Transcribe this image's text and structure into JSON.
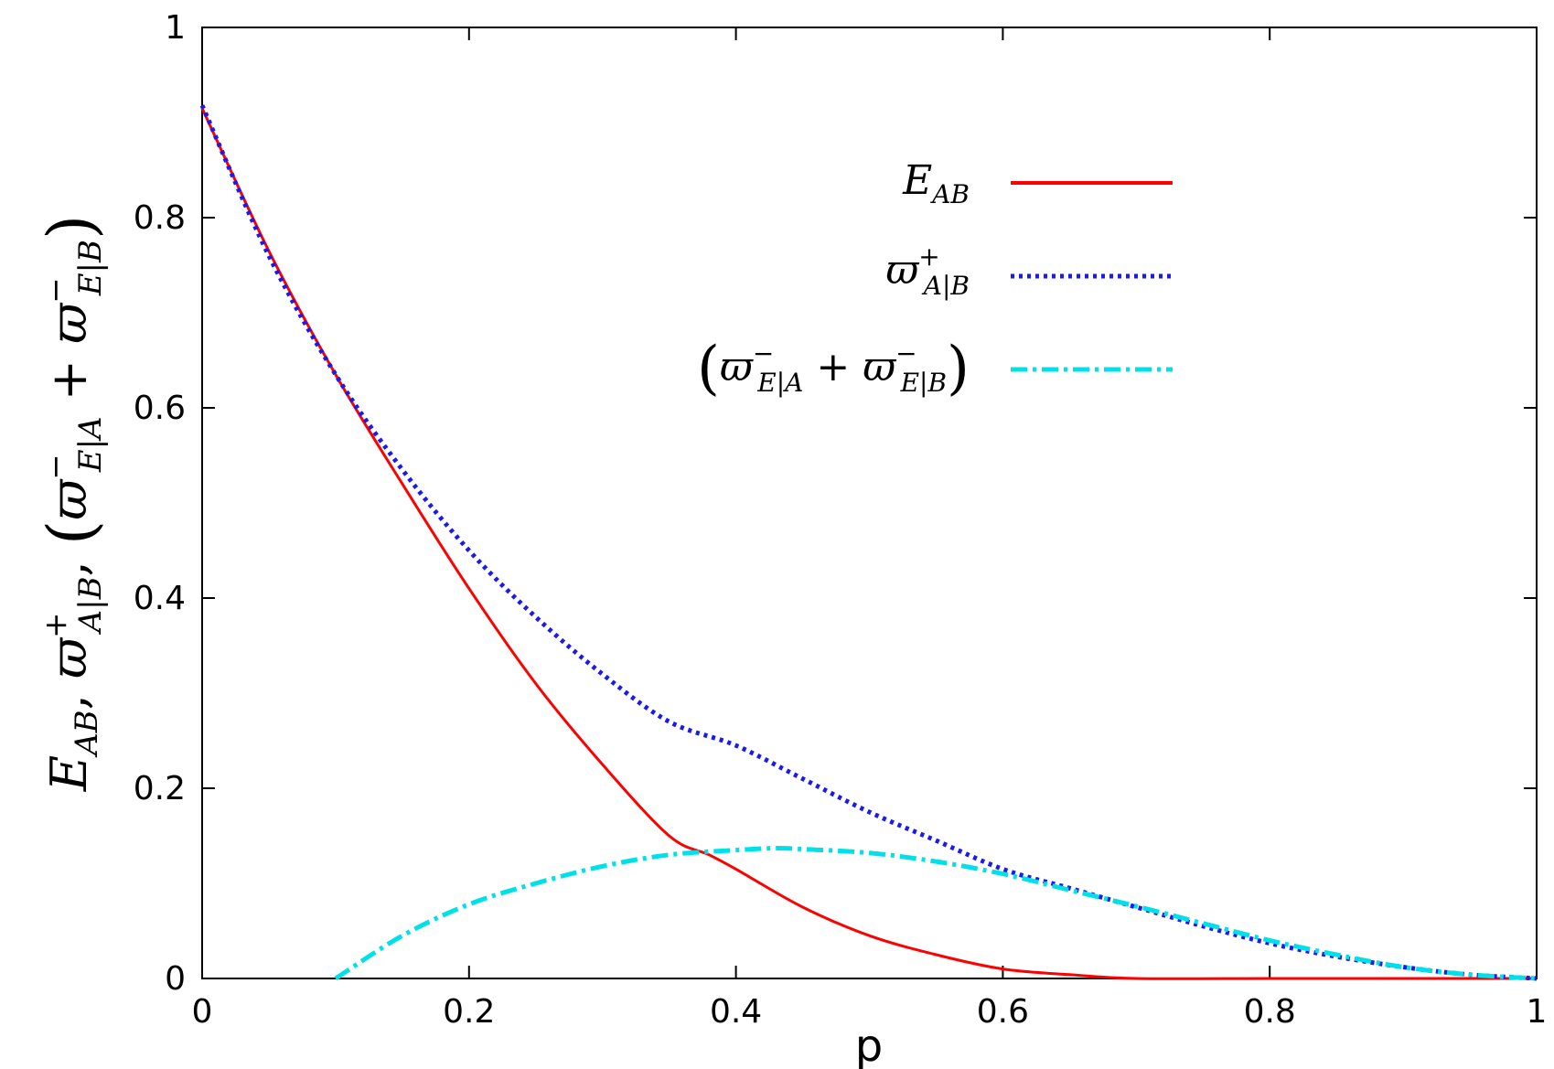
{
  "chart_data": {
    "type": "line",
    "xlabel": "p",
    "ylabel": {
      "main": "E",
      "sub_ab": "AB",
      "sep": ", ",
      "varpi": "ϖ",
      "sup_plus": "+",
      "sub_ab_cond": "A|B",
      "paren_open": "(",
      "paren_close": ")",
      "sup_minus": "−",
      "sub_ea": "E|A",
      "plus": " + ",
      "sub_eb": "E|B"
    },
    "xlim": [
      0,
      1
    ],
    "ylim": [
      0,
      1
    ],
    "xticks": [
      "0",
      "0.2",
      "0.4",
      "0.6",
      "0.8",
      "1"
    ],
    "yticks": [
      "0",
      "0.2",
      "0.4",
      "0.6",
      "0.8",
      "1"
    ],
    "grid": false,
    "legend_placement": "top-right",
    "series": [
      {
        "key": "E_AB",
        "color": "#ff0000",
        "style": "solid",
        "x": [
          0,
          0.05,
          0.1,
          0.15,
          0.2,
          0.25,
          0.3,
          0.35,
          0.38,
          0.4,
          0.45,
          0.5,
          0.55,
          0.6,
          0.65,
          0.7,
          0.8,
          0.9,
          1.0
        ],
        "y": [
          0.915,
          0.765,
          0.635,
          0.52,
          0.41,
          0.31,
          0.225,
          0.15,
          0.13,
          0.115,
          0.075,
          0.045,
          0.025,
          0.01,
          0.004,
          0.0,
          0.0,
          0.0,
          0.0
        ]
      },
      {
        "key": "varpi_plus_AB",
        "color": "#1a1aee",
        "style": "dotted",
        "x": [
          0,
          0.05,
          0.1,
          0.15,
          0.2,
          0.25,
          0.3,
          0.35,
          0.4,
          0.45,
          0.5,
          0.55,
          0.6,
          0.65,
          0.7,
          0.75,
          0.8,
          0.85,
          0.9,
          0.95,
          1.0
        ],
        "y": [
          0.918,
          0.76,
          0.635,
          0.535,
          0.45,
          0.38,
          0.32,
          0.27,
          0.245,
          0.21,
          0.175,
          0.145,
          0.115,
          0.095,
          0.075,
          0.055,
          0.037,
          0.023,
          0.012,
          0.004,
          0.0
        ]
      },
      {
        "key": "varpi_minus_sum",
        "color": "#00e0e8",
        "style": "dashdot",
        "x": [
          0.1,
          0.15,
          0.2,
          0.25,
          0.3,
          0.35,
          0.4,
          0.43,
          0.45,
          0.5,
          0.55,
          0.6,
          0.65,
          0.7,
          0.75,
          0.8,
          0.85,
          0.9,
          0.95,
          1.0
        ],
        "y": [
          0.0,
          0.045,
          0.078,
          0.1,
          0.118,
          0.13,
          0.135,
          0.137,
          0.136,
          0.132,
          0.123,
          0.11,
          0.093,
          0.076,
          0.058,
          0.04,
          0.025,
          0.012,
          0.004,
          0.0
        ]
      }
    ]
  }
}
